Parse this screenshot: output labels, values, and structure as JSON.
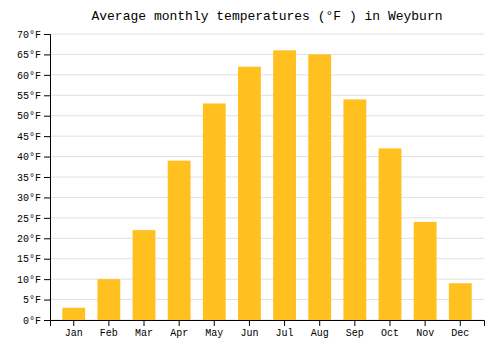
{
  "chart_data": {
    "type": "bar",
    "title": "Average monthly temperatures (°F ) in Weyburn",
    "categories": [
      "Jan",
      "Feb",
      "Mar",
      "Apr",
      "May",
      "Jun",
      "Jul",
      "Aug",
      "Sep",
      "Oct",
      "Nov",
      "Dec"
    ],
    "values": [
      3,
      10,
      22,
      39,
      53,
      62,
      66,
      65,
      54,
      42,
      24,
      9
    ],
    "color": "#FFC020",
    "ylim": [
      0,
      70
    ],
    "yticks": [
      {
        "value": 0,
        "label": "0°F"
      },
      {
        "value": 5,
        "label": "5°F"
      },
      {
        "value": 10,
        "label": "10°F"
      },
      {
        "value": 15,
        "label": "15°F"
      },
      {
        "value": 20,
        "label": "20°F"
      },
      {
        "value": 25,
        "label": "25°F"
      },
      {
        "value": 30,
        "label": "30°F"
      },
      {
        "value": 35,
        "label": "35°F"
      },
      {
        "value": 40,
        "label": "40°F"
      },
      {
        "value": 45,
        "label": "45°F"
      },
      {
        "value": 50,
        "label": "50°F"
      },
      {
        "value": 55,
        "label": "55°F"
      },
      {
        "value": 60,
        "label": "60°F"
      },
      {
        "value": 65,
        "label": "65°F"
      },
      {
        "value": 70,
        "label": "70°F"
      }
    ],
    "grid": true
  }
}
